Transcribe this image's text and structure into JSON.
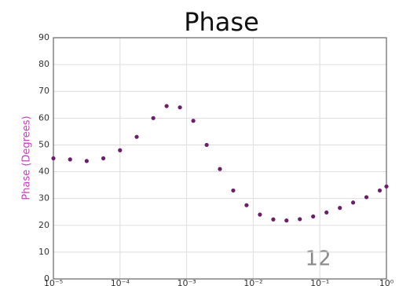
{
  "chart_data": {
    "type": "scatter",
    "title": "Phase",
    "ylabel": "Phase (Degrees)",
    "annotation": "12",
    "xscale": "log",
    "grid": true,
    "color": "#6b1f6b",
    "ylabel_color": "#c23fc2",
    "x": [
      1e-05,
      1.78e-05,
      3.16e-05,
      5.62e-05,
      0.0001,
      0.000178,
      0.000316,
      0.000501,
      0.000794,
      0.00126,
      0.002,
      0.00316,
      0.00501,
      0.00794,
      0.0126,
      0.02,
      0.0316,
      0.0501,
      0.0794,
      0.126,
      0.2,
      0.316,
      0.501,
      0.794,
      1
    ],
    "values": [
      45,
      44.6,
      44,
      45,
      48,
      53,
      60,
      64.5,
      64,
      59,
      50,
      41,
      33,
      27.5,
      24,
      22.2,
      21.8,
      22.3,
      23.3,
      24.8,
      26.5,
      28.5,
      30.5,
      33,
      34.5
    ],
    "xlim": [
      1e-05,
      1
    ],
    "ylim": [
      0,
      90
    ],
    "xticks": [
      {
        "value": 1e-05,
        "label": "10⁻⁵"
      },
      {
        "value": 0.0001,
        "label": "10⁻⁴"
      },
      {
        "value": 0.001,
        "label": "10⁻³"
      },
      {
        "value": 0.01,
        "label": "10⁻²"
      },
      {
        "value": 0.1,
        "label": "10⁻¹"
      },
      {
        "value": 1,
        "label": "10⁰"
      }
    ],
    "yticks": [
      0,
      10,
      20,
      30,
      40,
      50,
      60,
      70,
      80,
      90
    ]
  }
}
